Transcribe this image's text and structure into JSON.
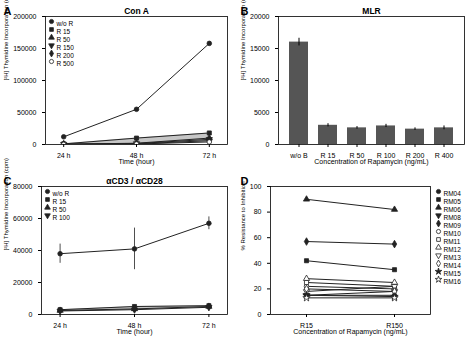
{
  "chart_data": [
    {
      "type": "line",
      "title": "Con A",
      "xlabel": "Time (hour)",
      "ylabel": "[²H] Thymidine Incorporation (cpm)",
      "x": [
        24,
        48,
        72
      ],
      "xlim": [
        18,
        78
      ],
      "xticks": [
        {
          "value": 24,
          "label": "24 h"
        },
        {
          "value": 48,
          "label": "48 h"
        },
        {
          "value": 72,
          "label": "72 h"
        }
      ],
      "ylim": [
        0,
        200000
      ],
      "yticks": [
        0,
        50000,
        100000,
        150000,
        200000
      ],
      "series": [
        {
          "name": "w/o R",
          "color": "#222222",
          "marker": "circle",
          "values": [
            12000,
            55000,
            158000
          ]
        },
        {
          "name": "R 15",
          "color": "#222222",
          "marker": "square",
          "values": [
            1000,
            10000,
            18000
          ]
        },
        {
          "name": "R 50",
          "color": "#222222",
          "marker": "triangle",
          "values": [
            500,
            2000,
            10000
          ]
        },
        {
          "name": "R 150",
          "color": "#222222",
          "marker": "triangle-down",
          "values": [
            400,
            1500,
            8000
          ]
        },
        {
          "name": "R 200",
          "color": "#222222",
          "marker": "diamond",
          "values": [
            300,
            1000,
            6000
          ]
        },
        {
          "name": "R 500",
          "color": "#222222",
          "marker": "circle-open",
          "values": [
            200,
            800,
            4000
          ]
        }
      ],
      "band": {
        "low": [
          200,
          800,
          4000
        ],
        "high": [
          1000,
          10000,
          18000
        ],
        "color": "gray"
      },
      "legend": "upper left",
      "grid": false,
      "annotations": [
        {
          "text": "A"
        }
      ]
    },
    {
      "type": "bar",
      "title": "MLR",
      "xlabel": "Concentration of Rapamycin (ng/mL)",
      "ylabel": "[²H] Thymidine Incorporation (cpm)",
      "categories": [
        "w/o B",
        "R 15",
        "R 50",
        "R 100",
        "R 200",
        "R 400"
      ],
      "values": [
        16000,
        3000,
        2600,
        2900,
        2400,
        2600
      ],
      "errors": [
        600,
        250,
        200,
        250,
        200,
        300
      ],
      "color": "#555555",
      "ylim": [
        0,
        20000
      ],
      "yticks": [
        0,
        5000,
        10000,
        15000,
        20000
      ],
      "grid": false,
      "annotations": [
        {
          "text": "B"
        }
      ]
    },
    {
      "type": "line",
      "title": "αCD3 / αCD28",
      "xlabel": "Time (hour)",
      "ylabel": "[²H] Thymidine Incorporation (cpm)",
      "x": [
        24,
        48,
        72
      ],
      "xlim": [
        18,
        78
      ],
      "xticks": [
        {
          "value": 24,
          "label": "24 h"
        },
        {
          "value": 48,
          "label": "48 h"
        },
        {
          "value": 72,
          "label": "72 h"
        }
      ],
      "ylim": [
        0,
        80000
      ],
      "yticks": [
        0,
        20000,
        40000,
        60000,
        80000
      ],
      "series": [
        {
          "name": "w/o R",
          "color": "#222222",
          "marker": "circle",
          "values": [
            38000,
            41000,
            57000
          ],
          "errors": [
            6000,
            13000,
            4000
          ]
        },
        {
          "name": "R 15",
          "color": "#222222",
          "marker": "square",
          "values": [
            3000,
            5000,
            5500
          ],
          "errors": [
            500,
            800,
            500
          ]
        },
        {
          "name": "R 50",
          "color": "#222222",
          "marker": "triangle",
          "values": [
            2500,
            3500,
            5000
          ],
          "errors": [
            400,
            600,
            400
          ]
        },
        {
          "name": "R 100",
          "color": "#222222",
          "marker": "triangle-down",
          "values": [
            2200,
            3000,
            4500
          ],
          "errors": [
            300,
            500,
            300
          ]
        }
      ],
      "band": {
        "low": [
          2200,
          3000,
          4500
        ],
        "high": [
          3000,
          5000,
          5500
        ],
        "color": "gray"
      },
      "legend": "upper left",
      "grid": false,
      "annotations": [
        {
          "text": "C"
        }
      ]
    },
    {
      "type": "line",
      "xlabel": "Concentration of Rapamycin (ng/mL)",
      "ylabel": "% Resistance to Inhibition",
      "categories": [
        "R15",
        "R150"
      ],
      "ylim": [
        0,
        100
      ],
      "yticks": [
        0,
        20,
        40,
        60,
        80,
        100
      ],
      "series": [
        {
          "name": "RM04",
          "color": "#222222",
          "marker": "circle",
          "values": [
            15,
            15
          ]
        },
        {
          "name": "RM05",
          "color": "#222222",
          "marker": "square",
          "values": [
            42,
            35
          ]
        },
        {
          "name": "RM06",
          "color": "#222222",
          "marker": "triangle",
          "values": [
            90,
            82
          ]
        },
        {
          "name": "RM08",
          "color": "#222222",
          "marker": "triangle-down",
          "values": [
            15,
            18
          ]
        },
        {
          "name": "RM09",
          "color": "#222222",
          "marker": "diamond",
          "values": [
            57,
            55
          ]
        },
        {
          "name": "RM10",
          "color": "#222222",
          "marker": "circle-open",
          "values": [
            22,
            20
          ]
        },
        {
          "name": "RM11",
          "color": "#222222",
          "marker": "square-open",
          "values": [
            25,
            22
          ]
        },
        {
          "name": "RM12",
          "color": "#222222",
          "marker": "triangle-open",
          "values": [
            28,
            25
          ]
        },
        {
          "name": "RM13",
          "color": "#222222",
          "marker": "triangle-down-open",
          "values": [
            18,
            22
          ]
        },
        {
          "name": "RM14",
          "color": "#222222",
          "marker": "diamond-open",
          "values": [
            20,
            18
          ]
        },
        {
          "name": "RM15",
          "color": "#222222",
          "marker": "star",
          "values": [
            15,
            14
          ]
        },
        {
          "name": "RM16",
          "color": "#222222",
          "marker": "star-open",
          "values": [
            13,
            13
          ]
        }
      ],
      "legend": "right",
      "grid": false,
      "annotations": [
        {
          "text": "D"
        }
      ]
    }
  ]
}
